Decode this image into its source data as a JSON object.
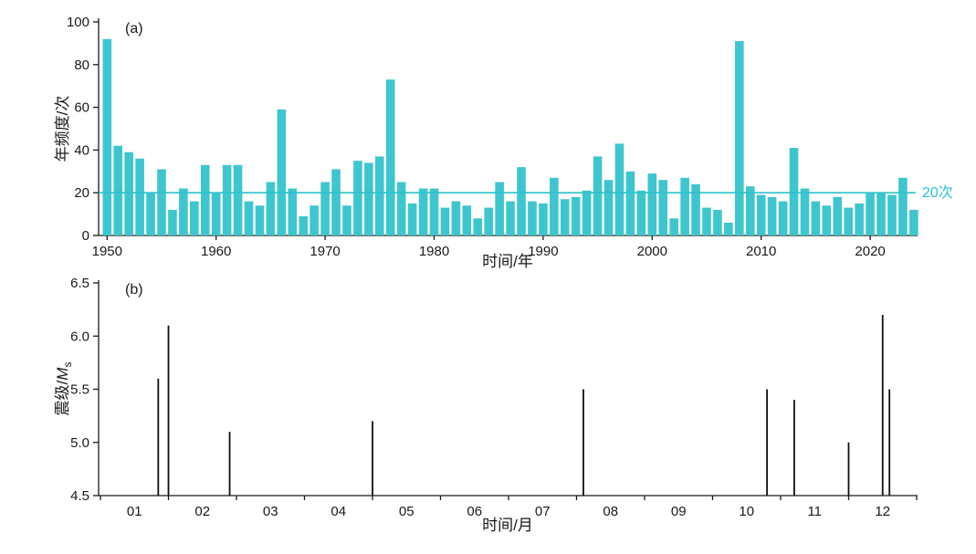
{
  "figure": {
    "background": "#ffffff",
    "axis_color": "#1a1a1a"
  },
  "chart_data": [
    {
      "type": "bar",
      "panel_label": "(a)",
      "xlabel": "时间/年",
      "ylabel": "年频度/次",
      "ylim": [
        0,
        100
      ],
      "yticks": [
        0,
        20,
        40,
        60,
        80,
        100
      ],
      "xticks": [
        1950,
        1960,
        1970,
        1980,
        1990,
        2000,
        2010,
        2020
      ],
      "bar_color": "#3ec6ce",
      "categories": [
        1950,
        1951,
        1952,
        1953,
        1954,
        1955,
        1956,
        1957,
        1958,
        1959,
        1960,
        1961,
        1962,
        1963,
        1964,
        1965,
        1966,
        1967,
        1968,
        1969,
        1970,
        1971,
        1972,
        1973,
        1974,
        1975,
        1976,
        1977,
        1978,
        1979,
        1980,
        1981,
        1982,
        1983,
        1984,
        1985,
        1986,
        1987,
        1988,
        1989,
        1990,
        1991,
        1992,
        1993,
        1994,
        1995,
        1996,
        1997,
        1998,
        1999,
        2000,
        2001,
        2002,
        2003,
        2004,
        2005,
        2006,
        2007,
        2008,
        2009,
        2010,
        2011,
        2012,
        2013,
        2014,
        2015,
        2016,
        2017,
        2018,
        2019,
        2020,
        2021,
        2022,
        2023,
        2024
      ],
      "values": [
        92,
        42,
        39,
        36,
        20,
        31,
        12,
        22,
        16,
        33,
        20,
        33,
        33,
        16,
        14,
        25,
        59,
        22,
        9,
        14,
        25,
        31,
        14,
        35,
        34,
        37,
        73,
        25,
        15,
        22,
        22,
        13,
        16,
        14,
        8,
        13,
        25,
        16,
        32,
        16,
        15,
        27,
        17,
        18,
        21,
        37,
        26,
        43,
        30,
        21,
        29,
        26,
        8,
        27,
        24,
        13,
        12,
        6,
        91,
        23,
        19,
        18,
        16,
        41,
        22,
        16,
        14,
        18,
        13,
        15,
        20,
        20,
        19,
        27,
        12
      ],
      "reference_line": {
        "value": 20,
        "label": "20次",
        "color": "#2cc3cc"
      }
    },
    {
      "type": "stem",
      "panel_label": "(b)",
      "xlabel": "时间/月",
      "ylabel_prefix": "震级/",
      "ylabel_var": "M",
      "ylabel_sub": "s",
      "ylim": [
        4.5,
        6.5
      ],
      "yticks": [
        "4.5",
        "5.0",
        "5.5",
        "6.0",
        "6.5"
      ],
      "xlim": [
        0.5,
        12.5
      ],
      "xticks": [
        "01",
        "02",
        "03",
        "04",
        "05",
        "06",
        "07",
        "08",
        "09",
        "10",
        "11",
        "12"
      ],
      "stem_color": "#111111",
      "points": [
        {
          "month": 1.35,
          "magnitude": 5.6
        },
        {
          "month": 1.5,
          "magnitude": 6.1
        },
        {
          "month": 2.4,
          "magnitude": 5.1
        },
        {
          "month": 4.5,
          "magnitude": 5.2
        },
        {
          "month": 7.6,
          "magnitude": 5.5
        },
        {
          "month": 10.3,
          "magnitude": 5.5
        },
        {
          "month": 10.7,
          "magnitude": 5.4
        },
        {
          "month": 11.5,
          "magnitude": 5.0
        },
        {
          "month": 12.0,
          "magnitude": 6.2
        },
        {
          "month": 12.1,
          "magnitude": 5.5
        }
      ]
    }
  ]
}
